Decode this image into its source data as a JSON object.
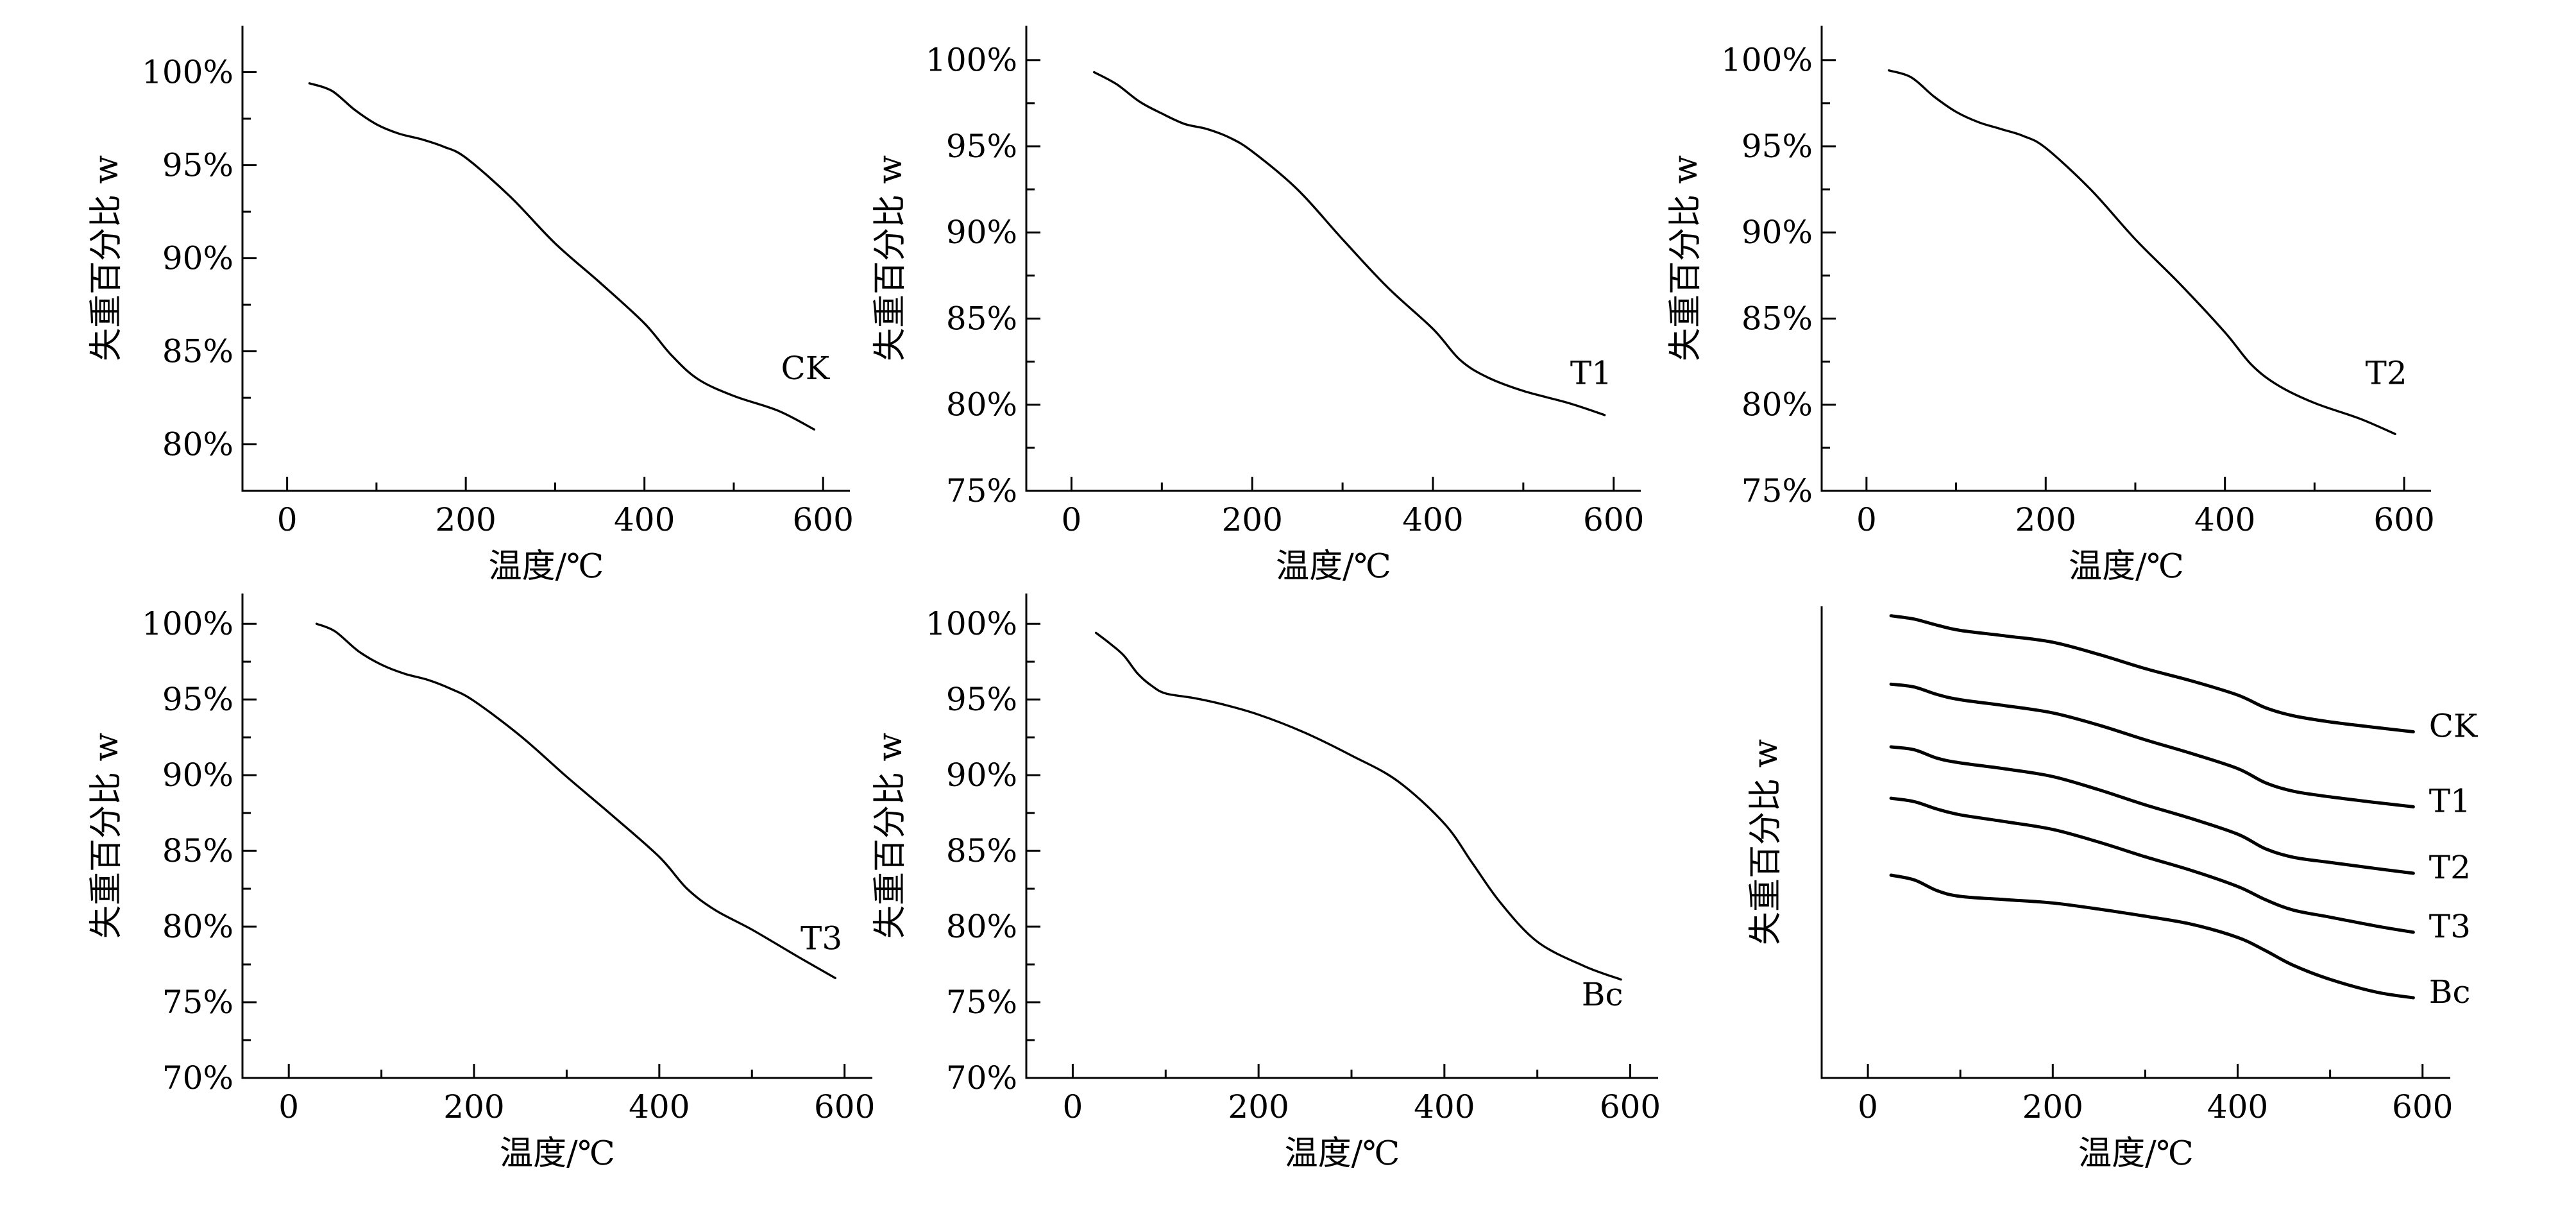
{
  "chart_data": [
    {
      "type": "line",
      "curve_label": "CK",
      "xlabel": "温度/℃",
      "ylabel": "失重百分比 w",
      "xlim": [
        -50,
        630
      ],
      "ylim": [
        77.5,
        102.5
      ],
      "xticks": [
        "0",
        "200",
        "400",
        "600"
      ],
      "yticks": [
        "80%",
        "85%",
        "90%",
        "95%",
        "100%"
      ],
      "x": [
        25,
        50,
        75,
        100,
        125,
        150,
        175,
        200,
        250,
        300,
        350,
        400,
        430,
        460,
        500,
        550,
        590
      ],
      "y": [
        99.4,
        99.0,
        98.0,
        97.2,
        96.7,
        96.4,
        96.0,
        95.4,
        93.3,
        90.8,
        88.7,
        86.5,
        84.8,
        83.5,
        82.6,
        81.8,
        80.8
      ],
      "label_at": [
        580,
        83.5
      ]
    },
    {
      "type": "line",
      "curve_label": "T1",
      "xlabel": "温度/℃",
      "ylabel": "失重百分比 w",
      "xlim": [
        -50,
        630
      ],
      "ylim": [
        75,
        102
      ],
      "xticks": [
        "0",
        "200",
        "400",
        "600"
      ],
      "yticks": [
        "75%",
        "80%",
        "85%",
        "90%",
        "95%",
        "100%"
      ],
      "x": [
        25,
        50,
        75,
        100,
        125,
        150,
        175,
        200,
        250,
        300,
        350,
        400,
        430,
        460,
        500,
        550,
        590
      ],
      "y": [
        99.3,
        98.6,
        97.6,
        96.9,
        96.3,
        96.0,
        95.5,
        94.7,
        92.5,
        89.6,
        86.8,
        84.4,
        82.6,
        81.6,
        80.8,
        80.1,
        79.4
      ],
      "label_at": [
        575,
        81.2
      ]
    },
    {
      "type": "line",
      "curve_label": "T2",
      "xlabel": "温度/℃",
      "ylabel": "失重百分比 w",
      "xlim": [
        -50,
        630
      ],
      "ylim": [
        75,
        102
      ],
      "xticks": [
        "0",
        "200",
        "400",
        "600"
      ],
      "yticks": [
        "75%",
        "80%",
        "85%",
        "90%",
        "95%",
        "100%"
      ],
      "x": [
        25,
        50,
        75,
        100,
        125,
        150,
        175,
        200,
        250,
        300,
        350,
        400,
        430,
        460,
        500,
        550,
        590
      ],
      "y": [
        99.4,
        99.0,
        97.9,
        97.0,
        96.4,
        96.0,
        95.6,
        94.9,
        92.5,
        89.6,
        87.0,
        84.2,
        82.3,
        81.1,
        80.1,
        79.2,
        78.3
      ],
      "label_at": [
        580,
        81.2
      ]
    },
    {
      "type": "line",
      "curve_label": "T3",
      "xlabel": "温度/℃",
      "ylabel": "失重百分比 w",
      "xlim": [
        -50,
        630
      ],
      "ylim": [
        70,
        102
      ],
      "xticks": [
        "0",
        "200",
        "400",
        "600"
      ],
      "yticks": [
        "70%",
        "75%",
        "80%",
        "85%",
        "90%",
        "95%",
        "100%"
      ],
      "x": [
        30,
        50,
        75,
        100,
        125,
        150,
        175,
        200,
        250,
        300,
        350,
        400,
        430,
        460,
        500,
        550,
        590
      ],
      "y": [
        100.0,
        99.5,
        98.2,
        97.3,
        96.7,
        96.3,
        95.7,
        94.9,
        92.6,
        89.9,
        87.3,
        84.6,
        82.5,
        81.1,
        79.8,
        78.0,
        76.6
      ],
      "label_at": [
        575,
        78.5
      ]
    },
    {
      "type": "line",
      "curve_label": "Bc",
      "xlabel": "温度/℃",
      "ylabel": "失重百分比 w",
      "xlim": [
        -50,
        630
      ],
      "ylim": [
        70,
        102
      ],
      "xticks": [
        "0",
        "200",
        "400",
        "600"
      ],
      "yticks": [
        "70%",
        "75%",
        "80%",
        "85%",
        "90%",
        "95%",
        "100%"
      ],
      "x": [
        25,
        40,
        55,
        70,
        85,
        100,
        130,
        160,
        200,
        250,
        300,
        350,
        400,
        430,
        460,
        500,
        550,
        590
      ],
      "y": [
        99.4,
        98.7,
        97.9,
        96.7,
        95.9,
        95.4,
        95.1,
        94.7,
        94.0,
        92.8,
        91.3,
        89.6,
        86.8,
        84.2,
        81.6,
        79.0,
        77.4,
        76.5
      ],
      "label_at": [
        570,
        74.8
      ]
    },
    {
      "type": "line",
      "multi": true,
      "xlabel": "温度/℃",
      "ylabel": "失重百分比 w",
      "xlim": [
        -50,
        630
      ],
      "ylim": [
        0,
        100
      ],
      "xticks": [
        "0",
        "200",
        "400",
        "600"
      ],
      "yticks": [],
      "x": [
        25,
        50,
        75,
        100,
        150,
        200,
        250,
        300,
        350,
        400,
        430,
        460,
        500,
        550,
        590
      ],
      "series": [
        {
          "name": "CK",
          "values": [
            98.0,
            97.3,
            96.0,
            94.9,
            93.7,
            92.4,
            89.8,
            86.8,
            84.2,
            81.2,
            78.5,
            76.8,
            75.5,
            74.3,
            73.4
          ]
        },
        {
          "name": "T1",
          "values": [
            83.5,
            82.9,
            81.3,
            80.2,
            78.9,
            77.4,
            74.8,
            71.7,
            68.8,
            65.6,
            62.6,
            60.8,
            59.6,
            58.4,
            57.5
          ]
        },
        {
          "name": "T2",
          "values": [
            70.2,
            69.6,
            67.8,
            66.8,
            65.5,
            63.9,
            61.1,
            57.9,
            55.0,
            51.7,
            48.6,
            46.8,
            45.7,
            44.4,
            43.4
          ]
        },
        {
          "name": "T3",
          "values": [
            59.3,
            58.6,
            57.0,
            55.8,
            54.3,
            52.7,
            50.0,
            46.9,
            44.0,
            40.6,
            37.8,
            35.6,
            34.1,
            32.2,
            30.9
          ]
        },
        {
          "name": "Bc",
          "values": [
            43.0,
            42.0,
            39.7,
            38.5,
            37.8,
            37.1,
            35.8,
            34.3,
            32.6,
            29.8,
            27.0,
            23.9,
            20.9,
            18.2,
            17.0
          ]
        }
      ],
      "label_x": 600
    }
  ]
}
